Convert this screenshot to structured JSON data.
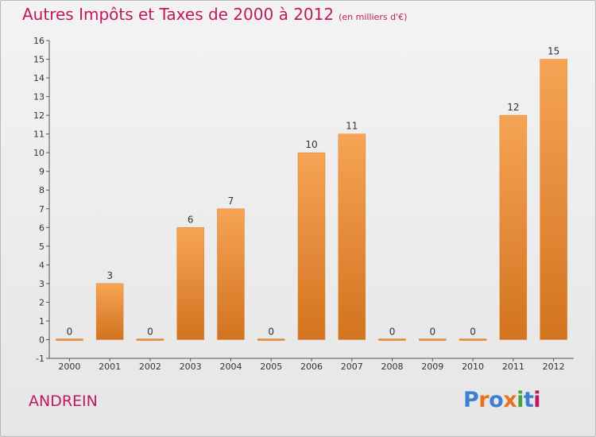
{
  "title": "Autres Impôts et Taxes de 2000 à 2012",
  "subtitle": "(en milliers d'€)",
  "commune": "ANDREIN",
  "logo": {
    "text": "Proxiti",
    "letter_colors": [
      "#3d7fd1",
      "#e8731f",
      "#3d7fd1",
      "#e8731f",
      "#4aa33a",
      "#3d7fd1",
      "#c0185f"
    ]
  },
  "colors": {
    "title": "#c0185f",
    "bar_top": "#f6a455",
    "bar_bottom": "#d2731f",
    "bar_edge": "#e0802a"
  },
  "chart_data": {
    "type": "bar",
    "title": "Autres Impôts et Taxes de 2000 à 2012",
    "subtitle": "(en milliers d'€)",
    "categories": [
      "2000",
      "2001",
      "2002",
      "2003",
      "2004",
      "2005",
      "2006",
      "2007",
      "2008",
      "2009",
      "2010",
      "2011",
      "2012"
    ],
    "values": [
      0,
      3,
      0,
      6,
      7,
      0,
      10,
      11,
      0,
      0,
      0,
      12,
      15
    ],
    "ylim": [
      -1,
      16
    ],
    "yticks": [
      -1,
      0,
      1,
      2,
      3,
      4,
      5,
      6,
      7,
      8,
      9,
      10,
      11,
      12,
      13,
      14,
      15,
      16
    ],
    "xlabel": "",
    "ylabel": "",
    "grid": false,
    "data_labels": true
  }
}
